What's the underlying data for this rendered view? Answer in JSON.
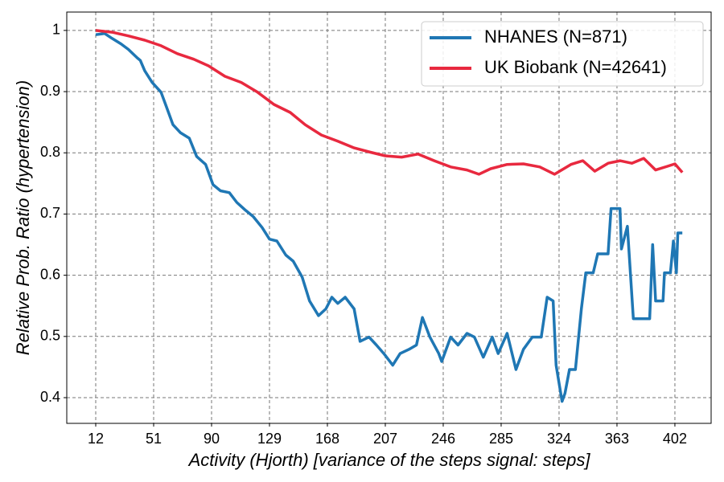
{
  "chart_data": {
    "type": "line",
    "x_label": "Activity (Hjorth) [variance of the steps signal: steps]",
    "y_label": "Relative Prob. Ratio (hypertension)",
    "xlim": [
      -7.5,
      426.4
    ],
    "ylim": [
      0.358,
      1.03
    ],
    "xticks": [
      12,
      51,
      90,
      129,
      168,
      207,
      246,
      285,
      324,
      363,
      402
    ],
    "yticks": [
      0.4,
      0.5,
      0.6,
      0.7,
      0.8,
      0.9,
      1.0
    ],
    "grid": true,
    "legend": "upper right",
    "series": [
      {
        "name": "NHANES (N=871)",
        "color": "#1f77b4",
        "x": [
          12,
          18,
          23,
          29,
          34,
          40,
          42,
          45,
          50,
          56,
          59,
          64,
          69,
          75,
          80,
          86,
          91,
          96,
          102,
          107,
          113,
          118,
          124,
          129,
          134,
          140,
          145,
          151,
          156,
          162,
          167,
          171,
          175,
          180,
          186,
          190,
          196,
          201,
          206,
          212,
          217,
          223,
          228,
          232,
          237,
          243,
          245,
          251,
          256,
          262,
          267,
          273,
          279,
          283,
          289,
          295,
          300,
          306,
          312,
          316,
          320,
          322,
          326,
          328,
          331,
          335,
          339,
          342,
          347,
          350,
          357,
          359,
          365,
          366,
          370,
          374,
          385,
          387,
          389,
          394,
          395,
          399,
          401,
          403,
          404,
          407
        ],
        "values": [
          0.993,
          0.995,
          0.987,
          0.978,
          0.969,
          0.955,
          0.951,
          0.934,
          0.915,
          0.899,
          0.879,
          0.846,
          0.833,
          0.824,
          0.794,
          0.781,
          0.748,
          0.738,
          0.735,
          0.719,
          0.706,
          0.696,
          0.678,
          0.659,
          0.656,
          0.633,
          0.623,
          0.597,
          0.558,
          0.534,
          0.545,
          0.564,
          0.554,
          0.564,
          0.545,
          0.492,
          0.499,
          0.486,
          0.472,
          0.453,
          0.472,
          0.479,
          0.486,
          0.531,
          0.499,
          0.472,
          0.459,
          0.499,
          0.486,
          0.505,
          0.499,
          0.466,
          0.499,
          0.472,
          0.505,
          0.446,
          0.479,
          0.499,
          0.499,
          0.564,
          0.558,
          0.453,
          0.394,
          0.407,
          0.446,
          0.446,
          0.545,
          0.604,
          0.604,
          0.635,
          0.635,
          0.709,
          0.709,
          0.643,
          0.68,
          0.529,
          0.529,
          0.65,
          0.558,
          0.558,
          0.604,
          0.604,
          0.656,
          0.604,
          0.669,
          0.669
        ]
      },
      {
        "name": "UK Biobank (N=42641)",
        "color": "#e8293f",
        "x": [
          12,
          23,
          34,
          45,
          56,
          67,
          78,
          88,
          99,
          110,
          121,
          132,
          143,
          153,
          164,
          175,
          186,
          197,
          207,
          218,
          229,
          240,
          251,
          262,
          270,
          278,
          289,
          300,
          311,
          321,
          332,
          340,
          348,
          357,
          365,
          373,
          381,
          389,
          397,
          402,
          407
        ],
        "values": [
          1.0,
          0.997,
          0.991,
          0.984,
          0.975,
          0.962,
          0.953,
          0.942,
          0.925,
          0.915,
          0.899,
          0.879,
          0.866,
          0.846,
          0.829,
          0.819,
          0.808,
          0.801,
          0.795,
          0.793,
          0.798,
          0.787,
          0.777,
          0.772,
          0.765,
          0.774,
          0.781,
          0.782,
          0.777,
          0.765,
          0.781,
          0.787,
          0.77,
          0.783,
          0.787,
          0.783,
          0.791,
          0.772,
          0.778,
          0.782,
          0.768
        ]
      }
    ]
  }
}
